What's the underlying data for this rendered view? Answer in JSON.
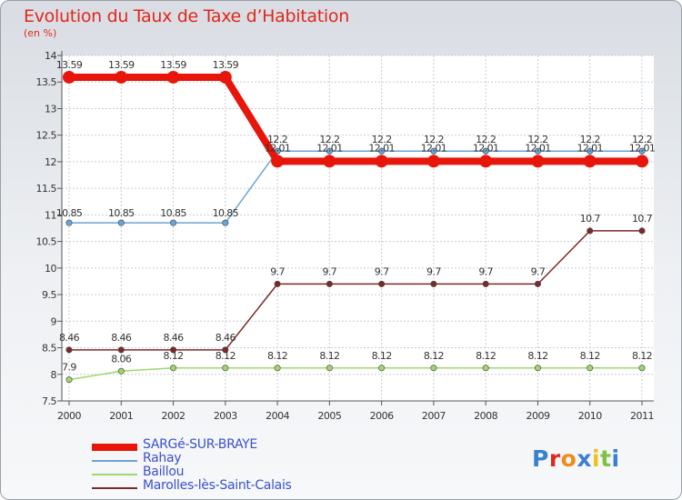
{
  "chart_data": {
    "type": "line",
    "title": "Evolution du Taux de Taxe d’Habitation",
    "subtitle": "(en %)",
    "categories": [
      "2000",
      "2001",
      "2002",
      "2003",
      "2004",
      "2005",
      "2006",
      "2007",
      "2008",
      "2009",
      "2010",
      "2011"
    ],
    "yticks": [
      "7.5",
      "8",
      "8.5",
      "9",
      "9.5",
      "10",
      "10.5",
      "11",
      "11.5",
      "12",
      "12.5",
      "13",
      "13.5",
      "14"
    ],
    "ylim": [
      7.5,
      14
    ],
    "series": [
      {
        "name": "SARGé-SUR-BRAYE",
        "color": "#e8150b",
        "values": [
          13.59,
          13.59,
          13.59,
          13.59,
          12.01,
          12.01,
          12.01,
          12.01,
          12.01,
          12.01,
          12.01,
          12.01
        ],
        "labels": [
          "13.59",
          "13.59",
          "13.59",
          "13.59",
          "12.01",
          "12.01",
          "12.01",
          "12.01",
          "12.01",
          "12.01",
          "12.01",
          "12.01"
        ]
      },
      {
        "name": "Rahay",
        "color": "#6aa4d6",
        "values": [
          10.85,
          10.85,
          10.85,
          10.85,
          12.2,
          12.2,
          12.2,
          12.2,
          12.2,
          12.2,
          12.2,
          12.2
        ],
        "labels": [
          "10.85",
          "10.85",
          "10.85",
          "10.85",
          "12.2",
          "12.2",
          "12.2",
          "12.2",
          "12.2",
          "12.2",
          "12.2",
          "12.2"
        ]
      },
      {
        "name": "Baillou",
        "color": "#9fd66b",
        "values": [
          7.9,
          8.06,
          8.12,
          8.12,
          8.12,
          8.12,
          8.12,
          8.12,
          8.12,
          8.12,
          8.12,
          8.12
        ],
        "labels": [
          "7.9",
          "8.06",
          "8.12",
          "8.12",
          "8.12",
          "8.12",
          "8.12",
          "8.12",
          "8.12",
          "8.12",
          "8.12",
          "8.12"
        ]
      },
      {
        "name": "Marolles-lès-Saint-Calais",
        "color": "#7a2a2a",
        "values": [
          8.46,
          8.46,
          8.46,
          8.46,
          9.7,
          9.7,
          9.7,
          9.7,
          9.7,
          9.7,
          10.7,
          10.7
        ],
        "labels": [
          "8.46",
          "8.46",
          "8.46",
          "8.46",
          "9.7",
          "9.7",
          "9.7",
          "9.7",
          "9.7",
          "9.7",
          "10.7",
          "10.7"
        ]
      }
    ]
  },
  "logo": {
    "letters": [
      "P",
      "r",
      "o",
      "x",
      "i",
      "t",
      "i"
    ],
    "colors": [
      "#3a7fd1",
      "#e0281c",
      "#f08a1c",
      "#3a7fd1",
      "#f0c01c",
      "#7cc243",
      "#3a7fd1"
    ]
  }
}
